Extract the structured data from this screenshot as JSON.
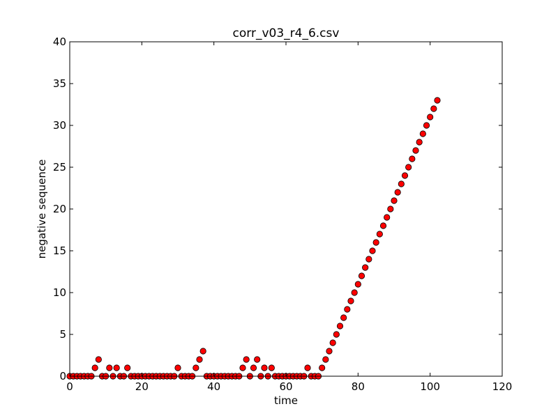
{
  "chart_data": {
    "type": "scatter",
    "title": "corr_v03_r4_6.csv",
    "xlabel": "time",
    "ylabel": "negative sequence",
    "xlim": [
      0,
      120
    ],
    "ylim": [
      0,
      40
    ],
    "xticks": [
      0,
      20,
      40,
      60,
      80,
      100,
      120
    ],
    "yticks": [
      0,
      5,
      10,
      15,
      20,
      25,
      30,
      35,
      40
    ],
    "grid": false,
    "legend": "none",
    "marker": "circle",
    "marker_color": "#ff0000",
    "marker_edge_color": "#000000",
    "series": [
      {
        "x": [
          0,
          1,
          2,
          3,
          4,
          5,
          6,
          7,
          8,
          9,
          10,
          11,
          12,
          13,
          14,
          15,
          16,
          17,
          18,
          19,
          20,
          21,
          22,
          23,
          24,
          25,
          26,
          27,
          28,
          29,
          30,
          31,
          32,
          33,
          34,
          35,
          36,
          37,
          38,
          39,
          40,
          41,
          42,
          43,
          44,
          45,
          46,
          47,
          48,
          49,
          50,
          51,
          52,
          53,
          54,
          55,
          56,
          57,
          58,
          59,
          60,
          61,
          62,
          63,
          64,
          65,
          66,
          67,
          68,
          69,
          70,
          71,
          72,
          73,
          74,
          75,
          76,
          77,
          78,
          79,
          80,
          81,
          82,
          83,
          84,
          85,
          86,
          87,
          88,
          89,
          90,
          91,
          92,
          93,
          94,
          95,
          96,
          97,
          98,
          99,
          100,
          101,
          102
        ],
        "y": [
          0,
          0,
          0,
          0,
          0,
          0,
          0,
          1,
          2,
          0,
          0,
          1,
          0,
          1,
          0,
          0,
          1,
          0,
          0,
          0,
          0,
          0,
          0,
          0,
          0,
          0,
          0,
          0,
          0,
          0,
          1,
          0,
          0,
          0,
          0,
          1,
          2,
          3,
          0,
          0,
          0,
          0,
          0,
          0,
          0,
          0,
          0,
          0,
          1,
          2,
          0,
          1,
          2,
          0,
          1,
          0,
          1,
          0,
          0,
          0,
          0,
          0,
          0,
          0,
          0,
          0,
          1,
          0,
          0,
          0,
          1,
          2,
          3,
          4,
          5,
          6,
          7,
          8,
          9,
          10,
          11,
          12,
          13,
          14,
          15,
          16,
          17,
          18,
          19,
          20,
          21,
          22,
          23,
          24,
          25,
          26,
          27,
          28,
          29,
          30,
          31,
          32,
          33
        ]
      }
    ]
  }
}
